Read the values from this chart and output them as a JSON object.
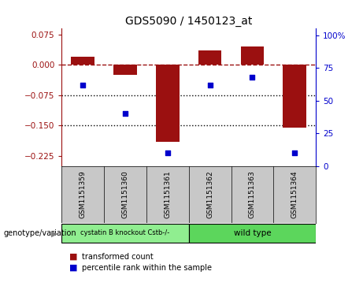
{
  "title": "GDS5090 / 1450123_at",
  "samples": [
    "GSM1151359",
    "GSM1151360",
    "GSM1151361",
    "GSM1151362",
    "GSM1151363",
    "GSM1151364"
  ],
  "transformed_count": [
    0.02,
    -0.025,
    -0.19,
    0.035,
    0.045,
    -0.155
  ],
  "percentile_rank": [
    62,
    40,
    10,
    62,
    68,
    10
  ],
  "bar_color": "#9B1010",
  "dot_color": "#0000CC",
  "ylim_left": [
    -0.25,
    0.09
  ],
  "ylim_right": [
    0,
    105
  ],
  "yticks_left": [
    0.075,
    0,
    -0.075,
    -0.15,
    -0.225
  ],
  "yticks_right": [
    100,
    75,
    50,
    25,
    0
  ],
  "hline_y": 0,
  "dotted_lines": [
    -0.075,
    -0.15
  ],
  "group1_label": "cystatin B knockout Cstb-/-",
  "group2_label": "wild type",
  "group1_indices": [
    0,
    1,
    2
  ],
  "group2_indices": [
    3,
    4,
    5
  ],
  "group1_color": "#90EE90",
  "group2_color": "#5CD65C",
  "genotype_label": "genotype/variation",
  "legend_bar_label": "transformed count",
  "legend_dot_label": "percentile rank within the sample",
  "background_color": "#FFFFFF",
  "plot_bg_color": "#FFFFFF",
  "sample_label_bg": "#C8C8C8"
}
